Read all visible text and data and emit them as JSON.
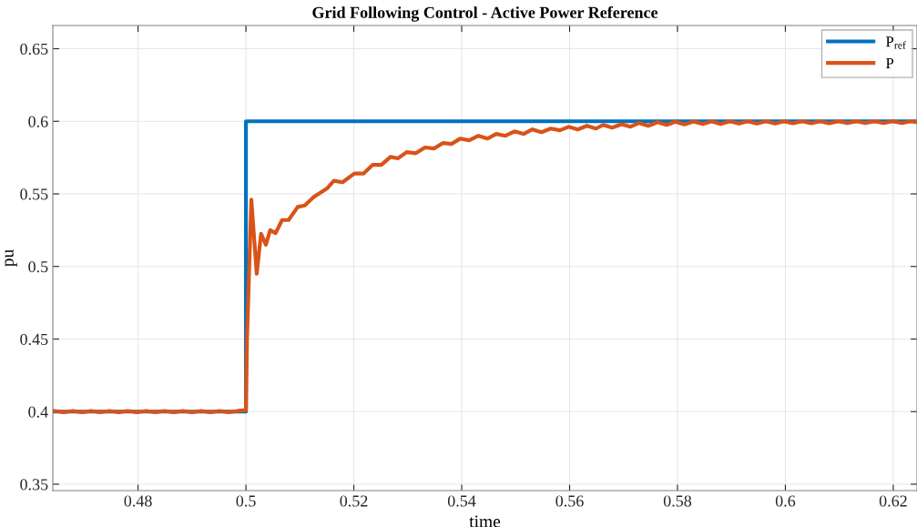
{
  "chart_data": {
    "type": "line",
    "title": "Grid Following Control - Active Power Reference",
    "xlabel": "time",
    "ylabel": "pu",
    "xlim": [
      0.4642,
      0.6244
    ],
    "xticks": [
      0.48,
      0.5,
      0.52,
      0.54,
      0.56,
      0.58,
      0.6,
      0.62
    ],
    "ylim": [
      0.3456,
      0.666
    ],
    "yticks": [
      0.35,
      0.4,
      0.45,
      0.5,
      0.55,
      0.6,
      0.65
    ],
    "grid": true,
    "legend": "top right",
    "series": [
      {
        "name": "P$_{ref}$",
        "color": "#0072bd",
        "x": [
          0.4642,
          0.5,
          0.5,
          0.6244
        ],
        "values": [
          0.4,
          0.4,
          0.6,
          0.6
        ]
      },
      {
        "name": "P",
        "color": "#d95319",
        "x": [
          0.4645,
          0.4662,
          0.4679,
          0.4696,
          0.4713,
          0.473,
          0.4747,
          0.4764,
          0.4781,
          0.4798,
          0.4815,
          0.4832,
          0.4849,
          0.4866,
          0.4883,
          0.49,
          0.4917,
          0.4934,
          0.4951,
          0.4968,
          0.4985,
          0.5,
          0.5002,
          0.501,
          0.502,
          0.5028,
          0.5037,
          0.5045,
          0.5055,
          0.5067,
          0.5079,
          0.5096,
          0.5109,
          0.5126,
          0.5151,
          0.5163,
          0.5179,
          0.5201,
          0.5218,
          0.5235,
          0.5251,
          0.5268,
          0.5282,
          0.5298,
          0.5315,
          0.5332,
          0.5349,
          0.5365,
          0.5381,
          0.5397,
          0.5414,
          0.5431,
          0.5448,
          0.5464,
          0.5481,
          0.5498,
          0.5515,
          0.5531,
          0.5548,
          0.5565,
          0.5582,
          0.5598,
          0.5615,
          0.5632,
          0.5649,
          0.5662,
          0.5679,
          0.5696,
          0.5713,
          0.5729,
          0.5746,
          0.5763,
          0.578,
          0.5796,
          0.5813,
          0.583,
          0.5847,
          0.5863,
          0.588,
          0.5897,
          0.5914,
          0.593,
          0.5947,
          0.5964,
          0.5981,
          0.5997,
          0.6014,
          0.6031,
          0.6048,
          0.6065,
          0.6081,
          0.6098,
          0.6115,
          0.6132,
          0.6148,
          0.6165,
          0.6182,
          0.6199,
          0.6216,
          0.6232,
          0.6244
        ],
        "values": [
          0.4005,
          0.3995,
          0.4005,
          0.3995,
          0.4005,
          0.3995,
          0.4005,
          0.3995,
          0.4005,
          0.3995,
          0.4005,
          0.3995,
          0.4005,
          0.3995,
          0.4005,
          0.3995,
          0.4005,
          0.3995,
          0.4005,
          0.3995,
          0.4005,
          0.401,
          0.45,
          0.546,
          0.495,
          0.5225,
          0.515,
          0.525,
          0.523,
          0.532,
          0.532,
          0.541,
          0.542,
          0.548,
          0.554,
          0.559,
          0.558,
          0.564,
          0.564,
          0.57,
          0.57,
          0.5755,
          0.5745,
          0.5788,
          0.578,
          0.582,
          0.5813,
          0.585,
          0.5844,
          0.588,
          0.5869,
          0.59,
          0.5881,
          0.5913,
          0.59,
          0.5931,
          0.5913,
          0.5944,
          0.5925,
          0.595,
          0.5938,
          0.5962,
          0.5944,
          0.5969,
          0.595,
          0.5975,
          0.5956,
          0.598,
          0.5963,
          0.5988,
          0.5969,
          0.5994,
          0.5975,
          0.5997,
          0.5978,
          0.5998,
          0.5981,
          0.6,
          0.5981,
          0.6,
          0.5984,
          0.6,
          0.5984,
          0.6,
          0.5984,
          0.6,
          0.5986,
          0.6,
          0.5986,
          0.6,
          0.5986,
          0.6,
          0.5988,
          0.6,
          0.5988,
          0.6,
          0.5988,
          0.6,
          0.5988,
          0.6,
          0.5994
        ]
      }
    ]
  }
}
